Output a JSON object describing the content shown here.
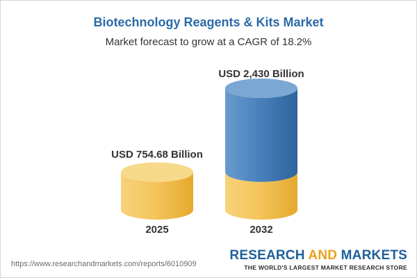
{
  "title": "Biotechnology Reagents & Kits Market",
  "subtitle": "Market forecast to grow at a CAGR of 18.2%",
  "chart_data": {
    "type": "bar",
    "categories": [
      "2025",
      "2032"
    ],
    "values": [
      754.68,
      2430
    ],
    "value_labels": [
      "USD 754.68 Billion",
      "USD 2,430 Billion"
    ],
    "unit": "USD Billion",
    "cagr": "18.2%",
    "colors": {
      "base": "#f2bf4b",
      "growth": "#3f78b3"
    }
  },
  "footer": {
    "url": "https://www.researchandmarkets.com/reports/6010909",
    "brand_part1": "RESEARCH ",
    "brand_and": "AND",
    "brand_part2": " MARKETS",
    "tagline": "THE WORLD'S LARGEST MARKET RESEARCH STORE"
  }
}
